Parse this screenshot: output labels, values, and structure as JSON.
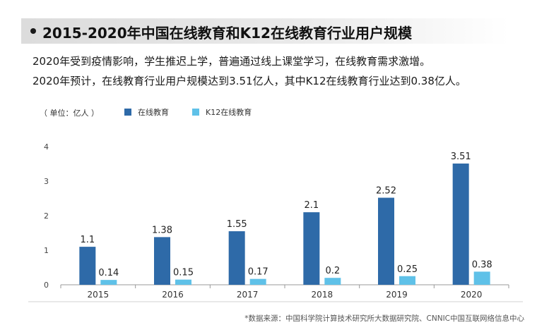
{
  "header": {
    "title": "2015-2020年中国在线教育和K12在线教育行业用户规模"
  },
  "description": {
    "line1": "2020年受到疫情影响，学生推迟上学，普遍通过线上课堂学习，在线教育需求激增。",
    "line2": "2020年预计，在线教育行业用户规模达到3.51亿人，其中K12在线教育行业达到0.38亿人。"
  },
  "footer": {
    "source": "*数据来源：中国科学院计算技术研究所大数据研究院、CNNIC中国互联网络信息中心"
  },
  "chart_data": {
    "type": "bar",
    "unit_label": "（ 单位：亿人 ）",
    "categories": [
      "2015",
      "2016",
      "2017",
      "2018",
      "2019",
      "2020"
    ],
    "series": [
      {
        "name": "在线教育",
        "values": [
          1.1,
          1.38,
          1.55,
          2.1,
          2.52,
          3.51
        ],
        "color": "#2e6aa8"
      },
      {
        "name": "K12在线教育",
        "values": [
          0.14,
          0.15,
          0.17,
          0.2,
          0.25,
          0.38
        ],
        "color": "#5fc1e8"
      }
    ],
    "yticks": [
      "0",
      "1",
      "2",
      "3",
      "4"
    ],
    "ylim": [
      0,
      4
    ],
    "grid": false,
    "legend_position": "top-left"
  }
}
